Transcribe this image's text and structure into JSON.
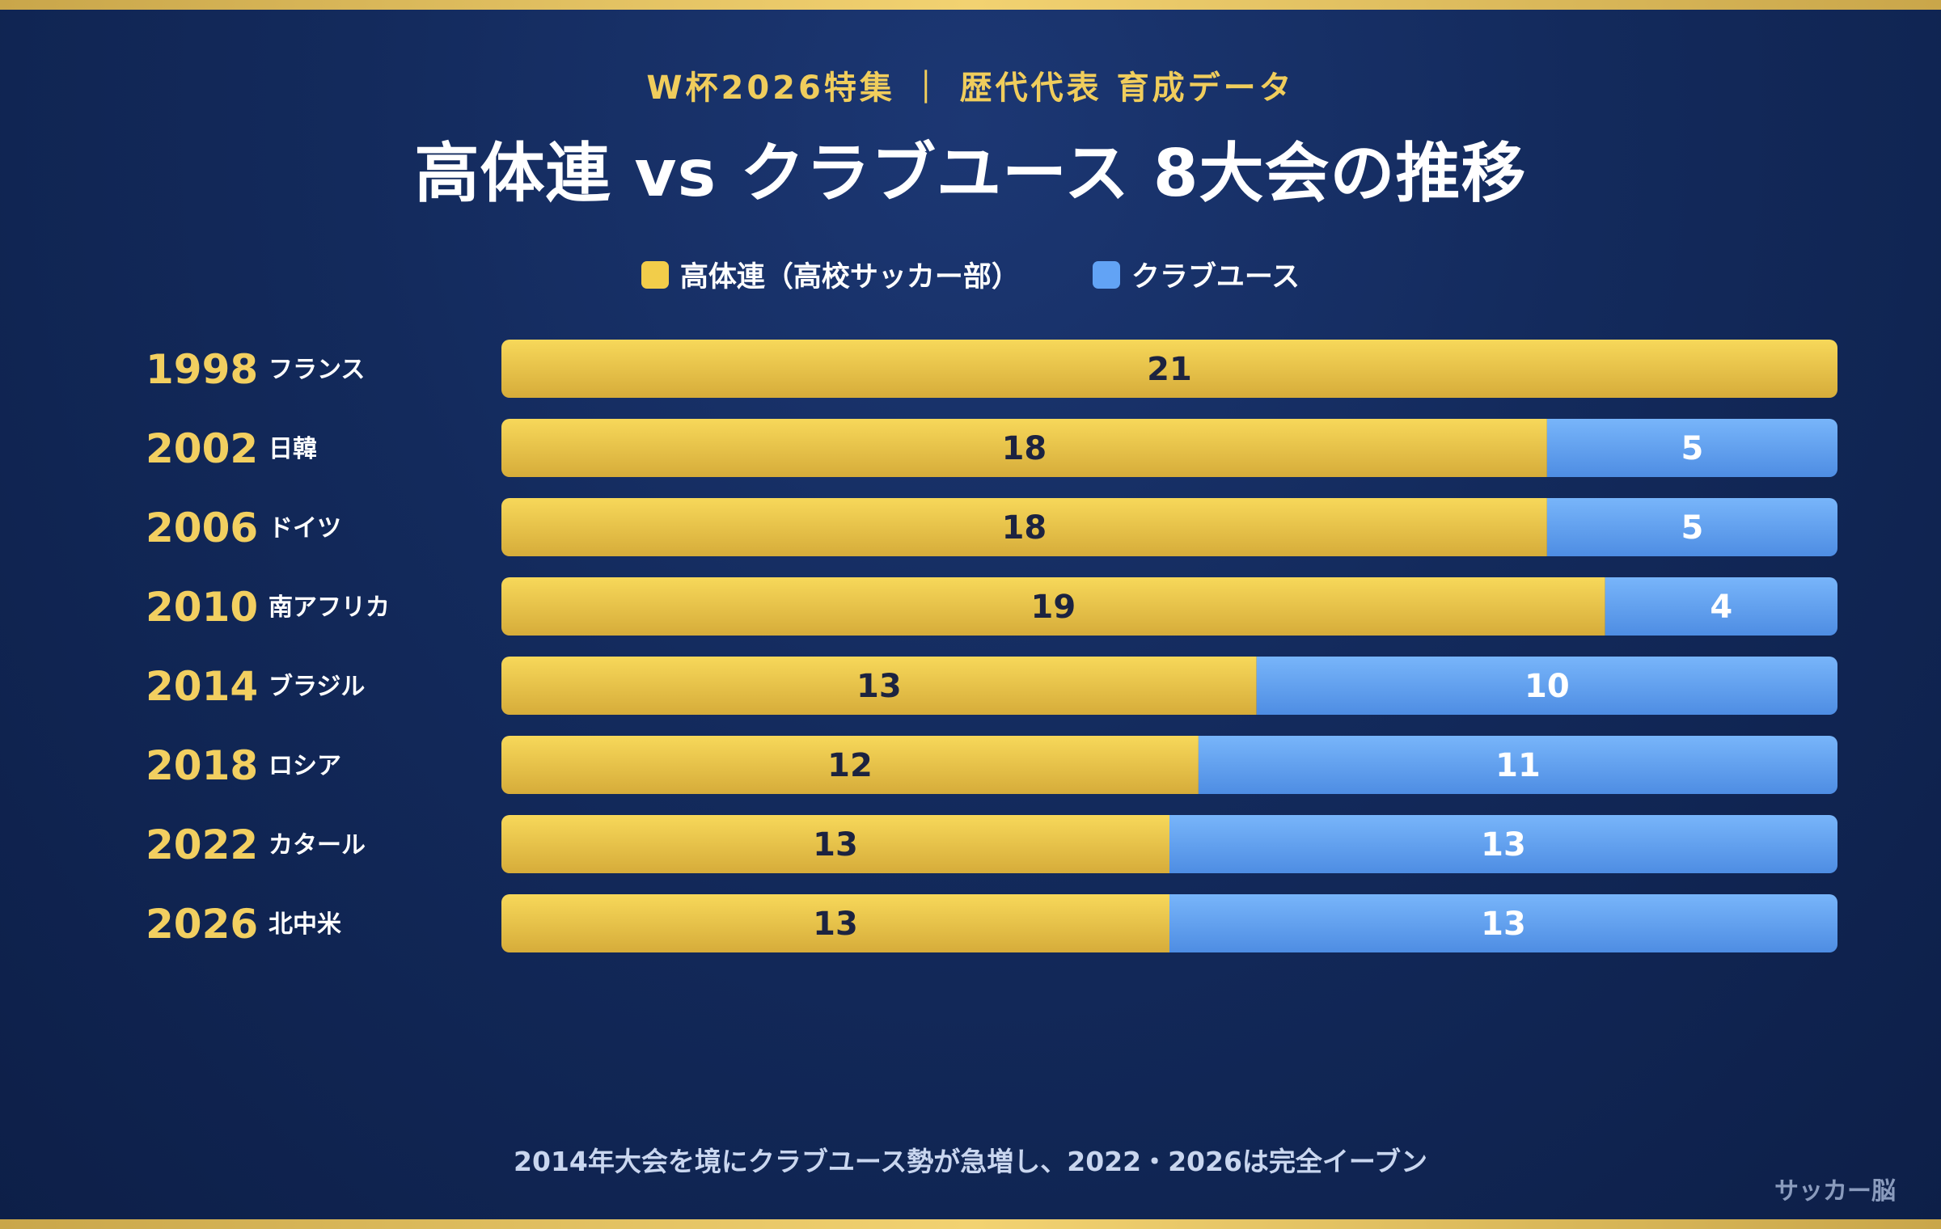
{
  "kicker": "W杯2026特集 ｜ 歴代代表 育成データ",
  "footnote": "2014年大会を境にクラブユース勢が急増し、2022・2026は完全イーブン",
  "brand": "サッカー脳",
  "colors": {
    "high_school": "#f2cd4a",
    "club_youth": "#62a3f5",
    "year_text": "#f2cf60",
    "host_text": "#ffffff"
  },
  "chart_data": {
    "type": "bar",
    "orientation": "horizontal",
    "stacked": true,
    "title": "高体連 vs クラブユース 8大会の推移",
    "categories": [
      "1998",
      "2002",
      "2006",
      "2010",
      "2014",
      "2018",
      "2022",
      "2026"
    ],
    "hosts": [
      "フランス",
      "日韓",
      "ドイツ",
      "南アフリカ",
      "ブラジル",
      "ロシア",
      "カタール",
      "北中米"
    ],
    "series": [
      {
        "name": "高体連（高校サッカー部）",
        "values": [
          21,
          18,
          18,
          19,
          13,
          12,
          13,
          13
        ]
      },
      {
        "name": "クラブユース",
        "values": [
          0,
          5,
          5,
          4,
          10,
          11,
          13,
          13
        ]
      }
    ],
    "legend_position": "top-center",
    "grid": false
  }
}
